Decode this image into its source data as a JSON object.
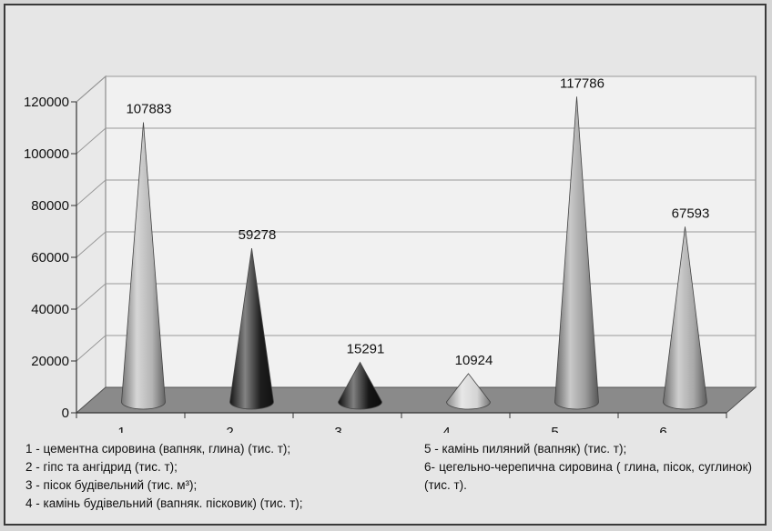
{
  "chart_data": {
    "type": "bar",
    "bar_shape": "cone",
    "categories": [
      "1",
      "2",
      "3",
      "4",
      "5",
      "6"
    ],
    "values": [
      107883,
      59278,
      15291,
      10924,
      117786,
      67593
    ],
    "data_labels": [
      "107883",
      "59278",
      "15291",
      "10924",
      "117786",
      "67593"
    ],
    "cone_colors": [
      "#b4b4b4",
      "#1e1e1e",
      "#161616",
      "#d4d4d4",
      "#9c9c9c",
      "#a8a8a8"
    ],
    "ylim": [
      0,
      120000
    ],
    "yticks": [
      "0",
      "20000",
      "40000",
      "60000",
      "80000",
      "100000",
      "120000"
    ],
    "grid": true,
    "title": "",
    "xlabel": "",
    "ylabel": ""
  },
  "legend": {
    "left": [
      "1 - цементна сировина (вапняк, глина) (тис. т);",
      "2 - гіпс та ангідрид (тис. т);",
      "3 - пісок будівельний (тис. м³);",
      "4 - камінь будівельний (вапняк. пісковик) (тис. т);"
    ],
    "right": [
      "5 - камінь пиляний (вапняк) (тис. т);",
      "6- цегельно-черепична сировина ( глина, пісок, суглинок) (тис. т)."
    ]
  }
}
